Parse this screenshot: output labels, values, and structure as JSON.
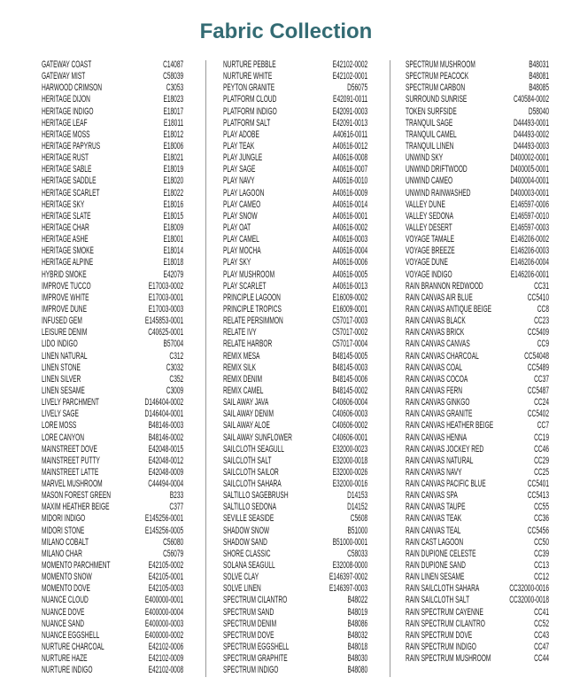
{
  "title": "Fabric Collection",
  "colors": {
    "title": "#336b73",
    "text": "#1a1a1a"
  },
  "columns": [
    [
      [
        "GATEWAY COAST",
        "C14087"
      ],
      [
        "GATEWAY MIST",
        "C58039"
      ],
      [
        "HARWOOD CRIMSON",
        "C3053"
      ],
      [
        "HERITAGE DIJON",
        "E18023"
      ],
      [
        "HERITAGE INDIGO",
        "E18017"
      ],
      [
        "HERITAGE LEAF",
        "E18011"
      ],
      [
        "HERITAGE MOSS",
        "E18012"
      ],
      [
        "HERITAGE PAPYRUS",
        "E18006"
      ],
      [
        "HERITAGE RUST",
        "E18021"
      ],
      [
        "HERITAGE SABLE",
        "E18019"
      ],
      [
        "HERITAGE SADDLE",
        "E18020"
      ],
      [
        "HERITAGE SCARLET",
        "E18022"
      ],
      [
        "HERITAGE SKY",
        "E18016"
      ],
      [
        "HERITAGE SLATE",
        "E18015"
      ],
      [
        "HERITAGE CHAR",
        "E18009"
      ],
      [
        "HERITAGE ASHE",
        "E18001"
      ],
      [
        "HERITAGE SMOKE",
        "E18014"
      ],
      [
        "HERITAGE ALPINE",
        "E18018"
      ],
      [
        "HYBRID SMOKE",
        "E42079"
      ],
      [
        "IMPROVE TUCCO",
        "E17003-0002"
      ],
      [
        "IMPROVE WHITE",
        "E17003-0001"
      ],
      [
        "IMPROVE DUNE",
        "E17003-0003"
      ],
      [
        "INFUSED GEM",
        "E145853-0001"
      ],
      [
        "LEISURE DENIM",
        "C40625-0001"
      ],
      [
        "LIDO INDIGO",
        "B57004"
      ],
      [
        "LINEN NATURAL",
        "C312"
      ],
      [
        "LINEN STONE",
        "C3032"
      ],
      [
        "LINEN SILVER",
        "C352"
      ],
      [
        "LINEN SESAME",
        "C3009"
      ],
      [
        "LIVELY PARCHMENT",
        "D146404-0002"
      ],
      [
        "LIVELY SAGE",
        "D146404-0001"
      ],
      [
        "LORE MOSS",
        "B48146-0003"
      ],
      [
        "LORE CANYON",
        "B48146-0002"
      ],
      [
        "MAINSTREET DOVE",
        "E42048-0015"
      ],
      [
        "MAINSTREET PUTTY",
        "E42048-0012"
      ],
      [
        "MAINSTREET LATTE",
        "E42048-0009"
      ],
      [
        "MARVEL MUSHROOM",
        "C44494-0004"
      ],
      [
        "MASON FOREST GREEN",
        "B233"
      ],
      [
        "MAXIM HEATHER BEIGE",
        "C377"
      ],
      [
        "MIDORI INDIGO",
        "E145256-0001"
      ],
      [
        "MIDORI STONE",
        "E145256-0005"
      ],
      [
        "MILANO COBALT",
        "C56080"
      ],
      [
        "MILANO CHAR",
        "C56079"
      ],
      [
        "MOMENTO PARCHMENT",
        "E42105-0002"
      ],
      [
        "MOMENTO SNOW",
        "E42105-0001"
      ],
      [
        "MOMENTO DOVE",
        "E42105-0003"
      ],
      [
        "NUANCE CLOUD",
        "E400000-0001"
      ],
      [
        "NUANCE DOVE",
        "E400000-0004"
      ],
      [
        "NUANCE SAND",
        "E400000-0003"
      ],
      [
        "NUANCE EGGSHELL",
        "E400000-0002"
      ],
      [
        "NURTURE CHARCOAL",
        "E42102-0006"
      ],
      [
        "NURTURE HAZE",
        "E42102-0009"
      ],
      [
        "NURTURE INDIGO",
        "E42102-0008"
      ]
    ],
    [
      [
        "NURTURE PEBBLE",
        "E42102-0002"
      ],
      [
        "NURTURE WHITE",
        "E42102-0001"
      ],
      [
        "PEYTON GRANITE",
        "D56075"
      ],
      [
        "PLATFORM CLOUD",
        "E42091-0011"
      ],
      [
        "PLATFORM INDIGO",
        "E42091-0003"
      ],
      [
        "PLATFORM SALT",
        "E42091-0013"
      ],
      [
        "PLAY ADOBE",
        "A40616-0011"
      ],
      [
        "PLAY TEAK",
        "A40616-0012"
      ],
      [
        "PLAY JUNGLE",
        "A40616-0008"
      ],
      [
        "PLAY SAGE",
        "A40616-0007"
      ],
      [
        "PLAY NAVY",
        "A40616-0010"
      ],
      [
        "PLAY LAGOON",
        "A40616-0009"
      ],
      [
        "PLAY CAMEO",
        "A40616-0014"
      ],
      [
        "PLAY SNOW",
        "A40616-0001"
      ],
      [
        "PLAY OAT",
        "A40616-0002"
      ],
      [
        "PLAY CAMEL",
        "A40616-0003"
      ],
      [
        "PLAY MOCHA",
        "A40616-0004"
      ],
      [
        "PLAY SKY",
        "A40616-0006"
      ],
      [
        "PLAY MUSHROOM",
        "A40616-0005"
      ],
      [
        "PLAY SCARLET",
        "A40616-0013"
      ],
      [
        "PRINCIPLE LAGOON",
        "E16009-0002"
      ],
      [
        "PRINCIPLE TROPICS",
        "E16009-0001"
      ],
      [
        "RELATE PERSIMMON",
        "C57017-0003"
      ],
      [
        "RELATE IVY",
        "C57017-0002"
      ],
      [
        "RELATE HARBOR",
        "C57017-0004"
      ],
      [
        "REMIX MESA",
        "B48145-0005"
      ],
      [
        "REMIX SILK",
        "B48145-0003"
      ],
      [
        "REMIX DENIM",
        "B48145-0006"
      ],
      [
        "REMIX CAMEL",
        "B48145-0002"
      ],
      [
        "SAIL AWAY JAVA",
        "C40606-0004"
      ],
      [
        "SAIL AWAY DENIM",
        "C40606-0003"
      ],
      [
        "SAIL AWAY ALOE",
        "C40606-0002"
      ],
      [
        "SAIL AWAY SUNFLOWER",
        "C40606-0001"
      ],
      [
        "SAILCLOTH SEAGULL",
        "E32000-0023"
      ],
      [
        "SAILCLOTH SALT",
        "E32000-0018"
      ],
      [
        "SAILCLOTH SAILOR",
        "E32000-0026"
      ],
      [
        "SAILCLOTH SAHARA",
        "E32000-0016"
      ],
      [
        "SALTILLO SAGEBRUSH",
        "D14153"
      ],
      [
        "SALTILLO SEDONA",
        "D14152"
      ],
      [
        "SEVILLE SEASIDE",
        "C5608"
      ],
      [
        "SHADOW SNOW",
        "B51000"
      ],
      [
        "SHADOW SAND",
        "B51000-0001"
      ],
      [
        "SHORE CLASSIC",
        "C58033"
      ],
      [
        "SOLANA SEAGULL",
        "E32008-0000"
      ],
      [
        "SOLVE CLAY",
        "E146397-0002"
      ],
      [
        "SOLVE LINEN",
        "E146397-0003"
      ],
      [
        "SPECTRUM CILANTRO",
        "B48022"
      ],
      [
        "SPECTRUM SAND",
        "B48019"
      ],
      [
        "SPECTRUM DENIM",
        "B48086"
      ],
      [
        "SPECTRUM DOVE",
        "B48032"
      ],
      [
        "SPECTRUM EGGSHELL",
        "B48018"
      ],
      [
        "SPECTRUM GRAPHITE",
        "B48030"
      ],
      [
        "SPECTRUM INDIGO",
        "B48080"
      ]
    ],
    [
      [
        "SPECTRUM MUSHROOM",
        "B48031"
      ],
      [
        "SPECTRUM PEACOCK",
        "B48081"
      ],
      [
        "SPECTRUM CARBON",
        "B48085"
      ],
      [
        "SURROUND SUNRISE",
        "C40584-0002"
      ],
      [
        "TOKEN SURFSIDE",
        "D58040"
      ],
      [
        "TRANQUIL SAGE",
        "D44493-0001"
      ],
      [
        "TRANQUIL CAMEL",
        "D44493-0002"
      ],
      [
        "TRANQUIL LINEN",
        "D44493-0003"
      ],
      [
        "UNWIND SKY",
        "D400002-0001"
      ],
      [
        "UNWIND DRIFTWOOD",
        "D400005-0001"
      ],
      [
        "UNWIND CAMEO",
        "D400004-0001"
      ],
      [
        "UNWIND RAINWASHED",
        "D400003-0001"
      ],
      [
        "VALLEY DUNE",
        "E146597-0006"
      ],
      [
        "VALLEY SEDONA",
        "E146597-0010"
      ],
      [
        "VALLEY DESERT",
        "E146597-0003"
      ],
      [
        "VOYAGE TAMALE",
        "E146206-0002"
      ],
      [
        "VOYAGE BREEZE",
        "E146206-0003"
      ],
      [
        "VOYAGE DUNE",
        "E146206-0004"
      ],
      [
        "VOYAGE INDIGO",
        "E146206-0001"
      ],
      [
        "RAIN BRANNON REDWOOD",
        "CC31"
      ],
      [
        "RAIN CANVAS AIR BLUE",
        "CC5410"
      ],
      [
        "RAIN CANVAS ANTIQUE BEIGE",
        "CC8"
      ],
      [
        "RAIN CANVAS BLACK",
        "CC23"
      ],
      [
        "RAIN CANVAS BRICK",
        "CC5409"
      ],
      [
        "RAIN CANVAS CANVAS",
        "CC9"
      ],
      [
        "RAIN CANVAS CHARCOAL",
        "CC54048"
      ],
      [
        "RAIN CANVAS COAL",
        "CC5489"
      ],
      [
        "RAIN CANVAS COCOA",
        "CC37"
      ],
      [
        "RAIN CANVAS FERN",
        "CC5487"
      ],
      [
        "RAIN CANVAS GINKGO",
        "CC24"
      ],
      [
        "RAIN CANVAS GRANITE",
        "CC5402"
      ],
      [
        "RAIN CANVAS HEATHER BEIGE",
        "CC7"
      ],
      [
        "RAIN CANVAS HENNA",
        "CC19"
      ],
      [
        "RAIN CANVAS JOCKEY RED",
        "CC46"
      ],
      [
        "RAIN CANVAS NATURAL",
        "CC29"
      ],
      [
        "RAIN CANVAS NAVY",
        "CC25"
      ],
      [
        "RAIN CANVAS PACIFIC BLUE",
        "CC5401"
      ],
      [
        "RAIN CANVAS SPA",
        "CC5413"
      ],
      [
        "RAIN CANVAS TAUPE",
        "CC55"
      ],
      [
        "RAIN CANVAS TEAK",
        "CC36"
      ],
      [
        "RAIN CANVAS TEAL",
        "CC5456"
      ],
      [
        "RAIN CAST LAGOON",
        "CC50"
      ],
      [
        "RAIN DUPIONE CELESTE",
        "CC39"
      ],
      [
        "RAIN DUPIONE SAND",
        "CC13"
      ],
      [
        "RAIN LINEN SESAME",
        "CC12"
      ],
      [
        "RAIN SAILCLOTH SAHARA",
        "CC32000-0016"
      ],
      [
        "RAIN SAILCLOTH SALT",
        "CC32000-0018"
      ],
      [
        "RAIN SPECTRUM CAYENNE",
        "CC41"
      ],
      [
        "RAIN SPECTRUM CILANTRO",
        "CC52"
      ],
      [
        "RAIN SPECTRUM DOVE",
        "CC43"
      ],
      [
        "RAIN SPECTRUM INDIGO",
        "CC47"
      ],
      [
        "RAIN SPECTRUM MUSHROOM",
        "CC44"
      ]
    ]
  ]
}
